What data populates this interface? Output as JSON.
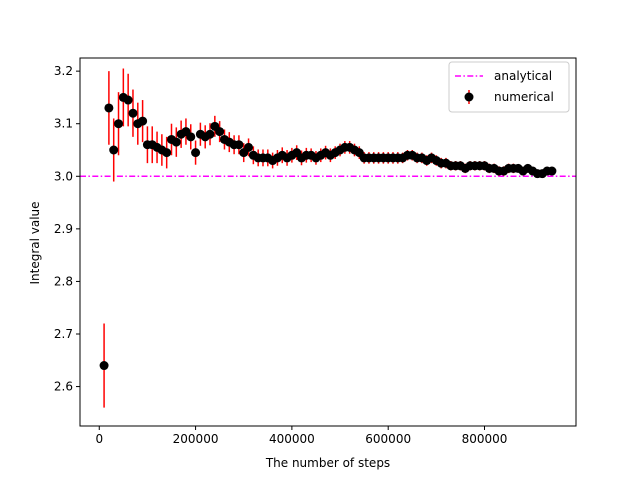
{
  "chart_data": {
    "type": "scatter",
    "title": "",
    "xlabel": "The number of steps",
    "ylabel": "Integral value",
    "xlim": [
      -40000,
      990000
    ],
    "ylim": [
      2.525,
      3.225
    ],
    "xticks": [
      0,
      200000,
      400000,
      600000,
      800000
    ],
    "xtick_labels": [
      "0",
      "200000",
      "400000",
      "600000",
      "800000"
    ],
    "yticks": [
      2.6,
      2.7,
      2.8,
      2.9,
      3.0,
      3.1,
      3.2
    ],
    "ytick_labels": [
      "2.6",
      "2.7",
      "2.8",
      "2.9",
      "3.0",
      "3.1",
      "3.2"
    ],
    "grid": false,
    "legend_position": "top-right",
    "analytical": {
      "name": "analytical",
      "value": 3.0,
      "color": "#ff00ff",
      "style": "dash-dot"
    },
    "numerical": {
      "name": "numerical",
      "marker_color": "#000000",
      "errorbar_color": "#ff0000",
      "x": [
        10000,
        20000,
        30000,
        40000,
        50000,
        60000,
        70000,
        80000,
        90000,
        100000,
        110000,
        120000,
        130000,
        140000,
        150000,
        160000,
        170000,
        180000,
        190000,
        200000,
        210000,
        220000,
        230000,
        240000,
        250000,
        260000,
        270000,
        280000,
        290000,
        300000,
        310000,
        320000,
        330000,
        340000,
        350000,
        360000,
        370000,
        380000,
        390000,
        400000,
        410000,
        420000,
        430000,
        440000,
        450000,
        460000,
        470000,
        480000,
        490000,
        500000,
        510000,
        520000,
        530000,
        540000,
        550000,
        560000,
        570000,
        580000,
        590000,
        600000,
        610000,
        620000,
        630000,
        640000,
        650000,
        660000,
        670000,
        680000,
        690000,
        700000,
        710000,
        720000,
        730000,
        740000,
        750000,
        760000,
        770000,
        780000,
        790000,
        800000,
        810000,
        820000,
        830000,
        840000,
        850000,
        860000,
        870000,
        880000,
        890000,
        900000,
        910000,
        920000,
        930000,
        940000
      ],
      "y": [
        2.64,
        3.13,
        3.05,
        3.1,
        3.15,
        3.145,
        3.12,
        3.1,
        3.105,
        3.06,
        3.06,
        3.055,
        3.05,
        3.045,
        3.07,
        3.065,
        3.08,
        3.085,
        3.075,
        3.045,
        3.08,
        3.075,
        3.08,
        3.095,
        3.085,
        3.07,
        3.065,
        3.06,
        3.06,
        3.045,
        3.055,
        3.04,
        3.035,
        3.035,
        3.035,
        3.03,
        3.035,
        3.04,
        3.035,
        3.04,
        3.045,
        3.035,
        3.04,
        3.04,
        3.035,
        3.04,
        3.045,
        3.04,
        3.045,
        3.05,
        3.055,
        3.055,
        3.05,
        3.045,
        3.035,
        3.035,
        3.035,
        3.035,
        3.035,
        3.035,
        3.035,
        3.035,
        3.035,
        3.04,
        3.04,
        3.035,
        3.035,
        3.03,
        3.035,
        3.03,
        3.025,
        3.025,
        3.02,
        3.02,
        3.02,
        3.015,
        3.02,
        3.02,
        3.02,
        3.02,
        3.015,
        3.015,
        3.01,
        3.01,
        3.015,
        3.015,
        3.015,
        3.01,
        3.015,
        3.01,
        3.005,
        3.005,
        3.01,
        3.01
      ],
      "err": [
        0.08,
        0.07,
        0.06,
        0.06,
        0.055,
        0.05,
        0.045,
        0.04,
        0.04,
        0.035,
        0.035,
        0.03,
        0.03,
        0.03,
        0.03,
        0.028,
        0.026,
        0.025,
        0.024,
        0.023,
        0.022,
        0.022,
        0.021,
        0.02,
        0.02,
        0.019,
        0.019,
        0.018,
        0.018,
        0.018,
        0.017,
        0.017,
        0.016,
        0.016,
        0.016,
        0.015,
        0.015,
        0.015,
        0.015,
        0.014,
        0.014,
        0.014,
        0.014,
        0.013,
        0.013,
        0.013,
        0.013,
        0.013,
        0.012,
        0.012,
        0.012,
        0.012,
        0.012,
        0.012,
        0.011,
        0.011,
        0.011,
        0.011,
        0.011,
        0.011,
        0.011,
        0.011,
        0.01,
        0.01,
        0.01,
        0.01,
        0.01,
        0.01,
        0.01,
        0.01,
        0.01,
        0.01,
        0.009,
        0.009,
        0.009,
        0.009,
        0.009,
        0.009,
        0.009,
        0.009,
        0.009,
        0.009,
        0.009,
        0.009,
        0.009,
        0.009,
        0.008,
        0.008,
        0.008,
        0.008,
        0.008,
        0.008,
        0.008,
        0.008
      ]
    }
  }
}
